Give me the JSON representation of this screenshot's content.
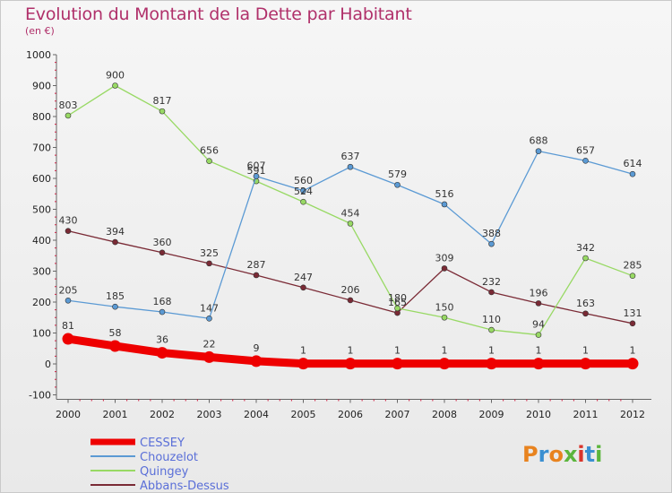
{
  "chart_title": "Evolution du Montant de la Dette par Habitant",
  "chart_subtitle": "(en €)",
  "logo": "Proxiti",
  "chart_data": {
    "type": "line",
    "title": "Evolution du Montant de la Dette par Habitant",
    "subtitle": "(en €)",
    "xlabel": "",
    "ylabel": "",
    "x": [
      "2000",
      "2001",
      "2002",
      "2003",
      "2004",
      "2005",
      "2006",
      "2007",
      "2008",
      "2009",
      "2010",
      "2011",
      "2012"
    ],
    "ylim": [
      -100,
      1000
    ],
    "yticks": [
      -100,
      0,
      100,
      200,
      300,
      400,
      500,
      600,
      700,
      800,
      900,
      1000
    ],
    "grid": false,
    "legend": "bottom-left",
    "series": [
      {
        "name": "CESSEY",
        "color": "#ee0000",
        "emphasis": true,
        "values": [
          81,
          58,
          36,
          22,
          9,
          1,
          1,
          1,
          1,
          1,
          1,
          1,
          1
        ]
      },
      {
        "name": "Chouzelot",
        "color": "#5b9ad4",
        "values": [
          205,
          185,
          168,
          147,
          607,
          560,
          637,
          579,
          516,
          388,
          688,
          657,
          614
        ]
      },
      {
        "name": "Quingey",
        "color": "#98d964",
        "values": [
          803,
          900,
          817,
          656,
          591,
          524,
          454,
          180,
          150,
          110,
          94,
          342,
          285
        ]
      },
      {
        "name": "Abbans-Dessus",
        "color": "#7a2a35",
        "values": [
          430,
          394,
          360,
          325,
          287,
          247,
          206,
          165,
          309,
          232,
          196,
          163,
          131
        ]
      }
    ]
  }
}
